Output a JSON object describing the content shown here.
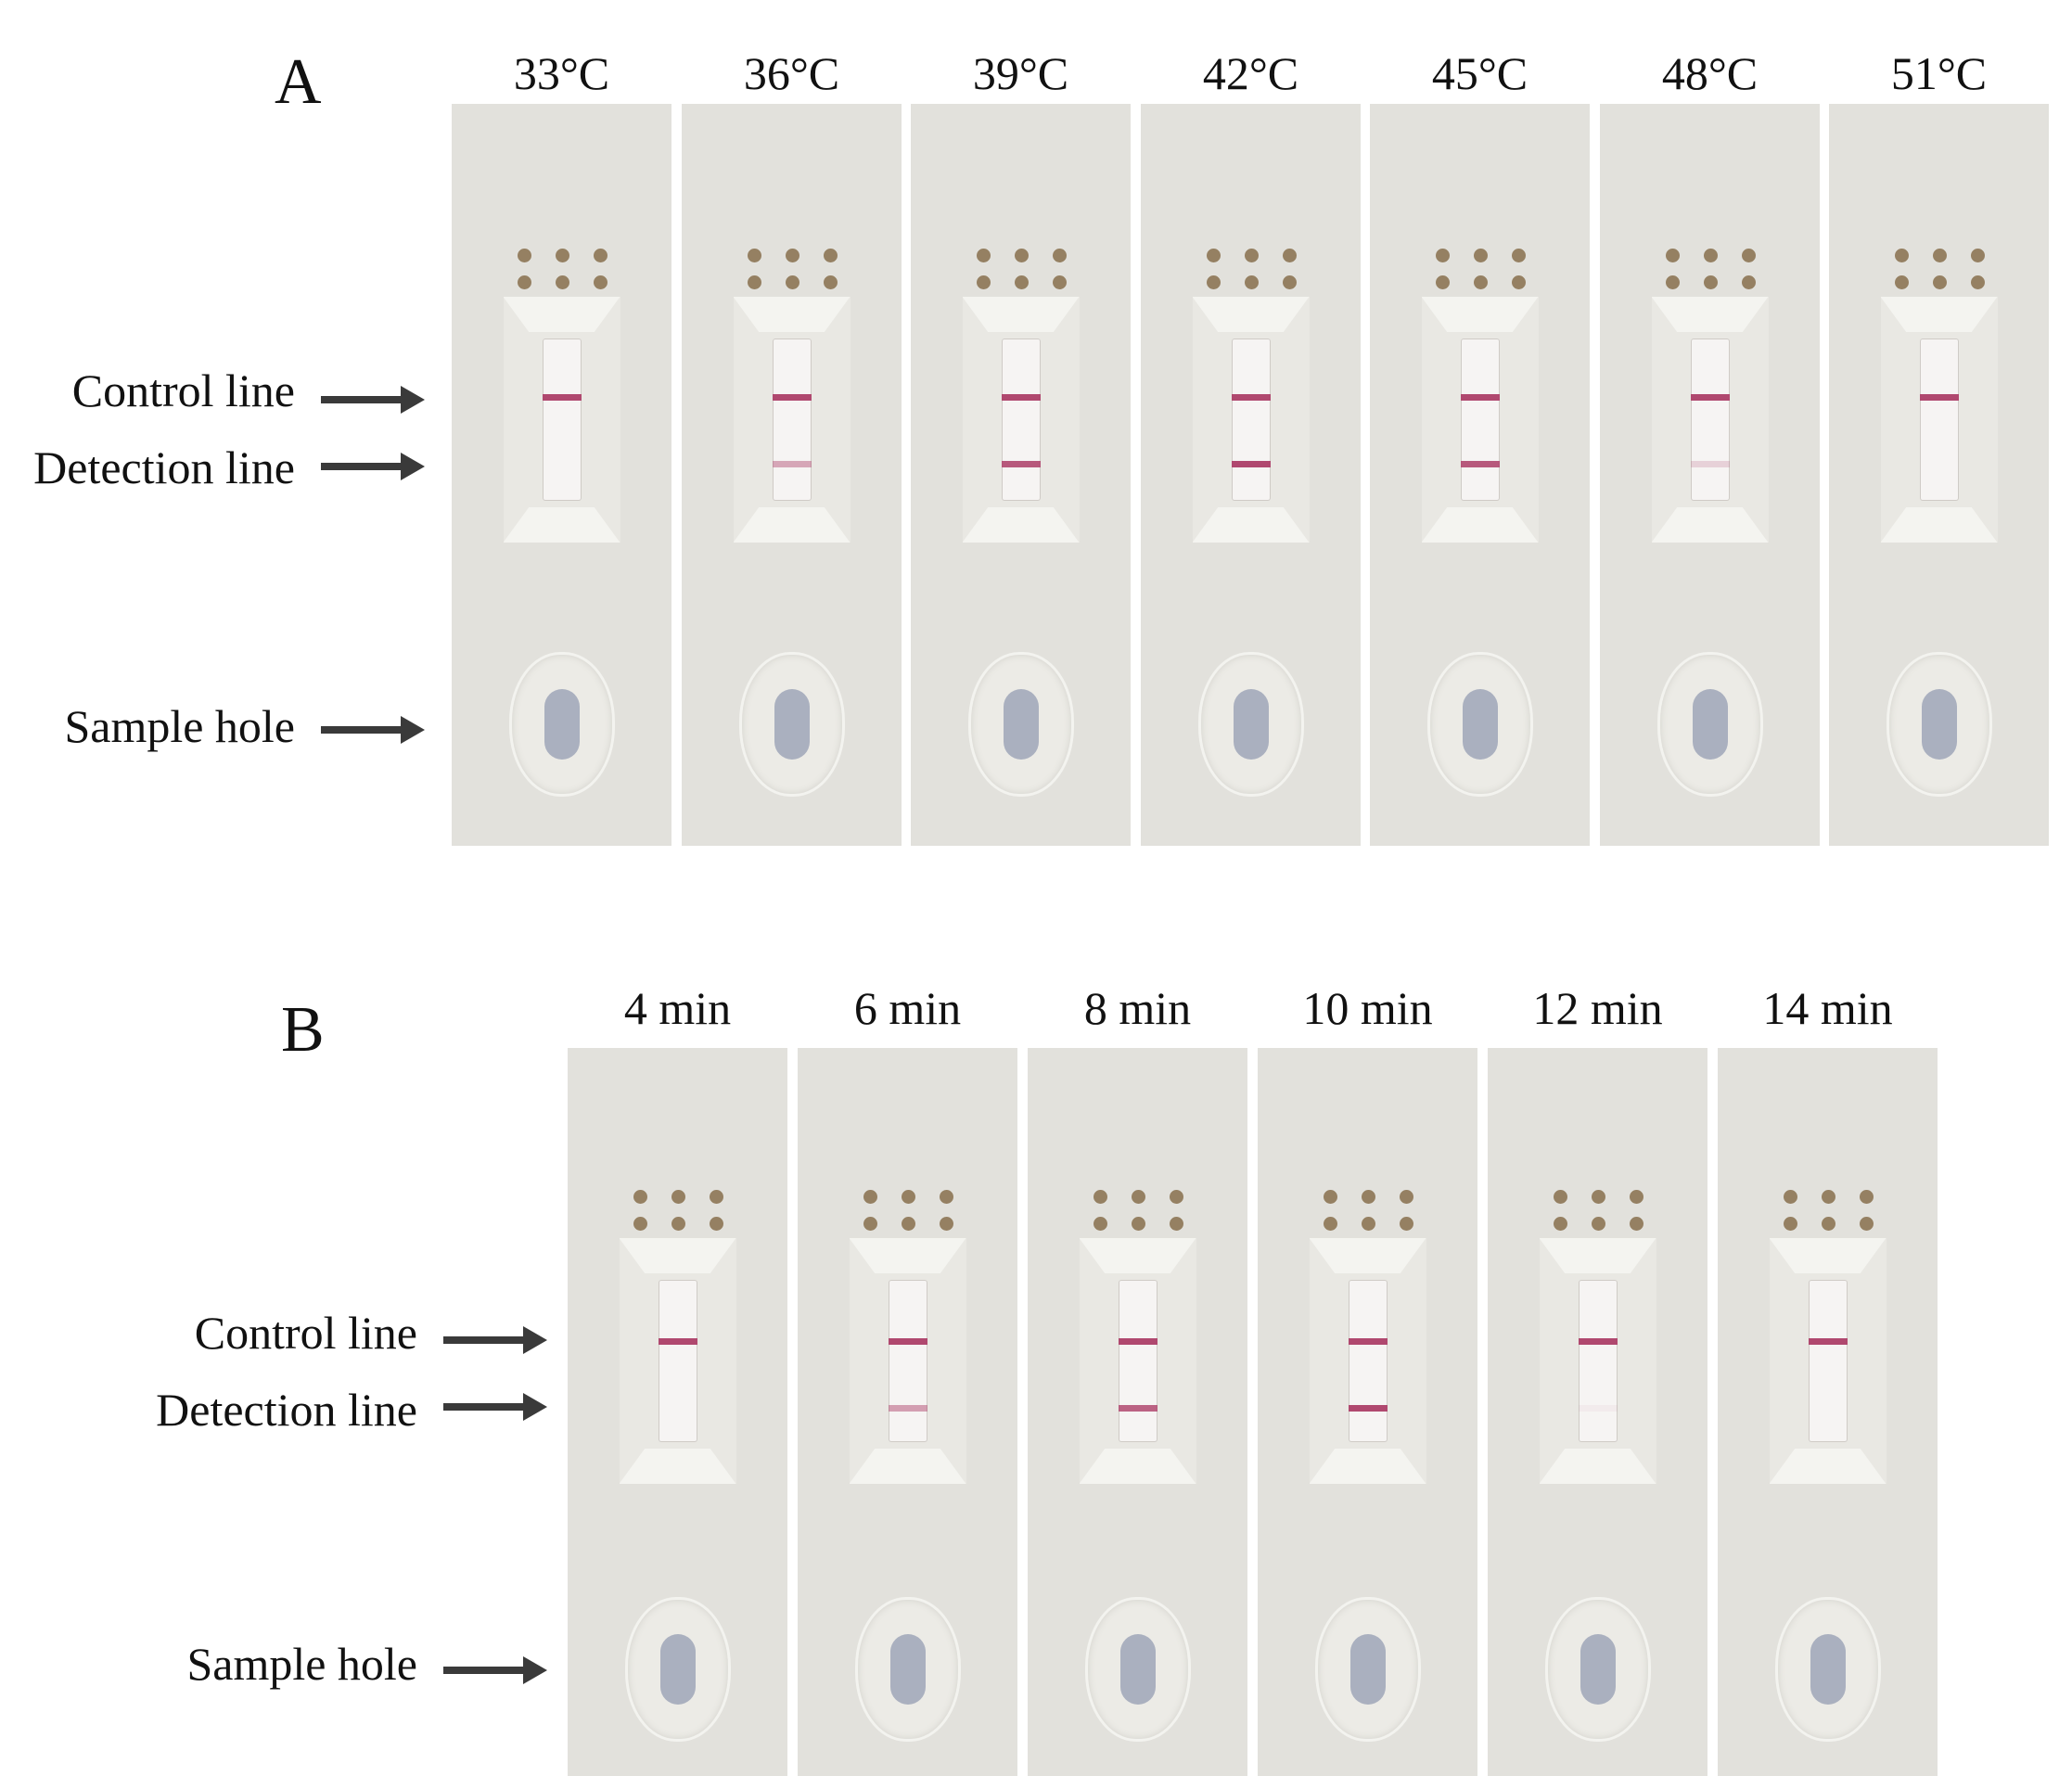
{
  "panels": [
    {
      "letter": "A",
      "row_labels": {
        "control": "Control line",
        "detection": "Detection line",
        "sample": "Sample hole"
      },
      "strips": [
        {
          "condition": "33°C",
          "control_line": true,
          "detection_line": 0.0
        },
        {
          "condition": "36°C",
          "control_line": true,
          "detection_line": 0.45
        },
        {
          "condition": "39°C",
          "control_line": true,
          "detection_line": 0.9
        },
        {
          "condition": "42°C",
          "control_line": true,
          "detection_line": 1.0
        },
        {
          "condition": "45°C",
          "control_line": true,
          "detection_line": 0.9
        },
        {
          "condition": "48°C",
          "control_line": true,
          "detection_line": 0.2
        },
        {
          "condition": "51°C",
          "control_line": true,
          "detection_line": 0.0
        }
      ]
    },
    {
      "letter": "B",
      "row_labels": {
        "control": "Control line",
        "detection": "Detection line",
        "sample": "Sample hole"
      },
      "strips": [
        {
          "condition": "4 min",
          "control_line": true,
          "detection_line": 0.0
        },
        {
          "condition": "6 min",
          "control_line": true,
          "detection_line": 0.5
        },
        {
          "condition": "8 min",
          "control_line": true,
          "detection_line": 0.85
        },
        {
          "condition": "10 min",
          "control_line": true,
          "detection_line": 1.0
        },
        {
          "condition": "12 min",
          "control_line": true,
          "detection_line": 0.05
        },
        {
          "condition": "14 min",
          "control_line": true,
          "detection_line": 0.0
        }
      ]
    }
  ],
  "colors": {
    "test_line": "#b0486f",
    "strip": "#e2e1dc",
    "window": "#f6f4f3",
    "arrow": "#3a3a3a"
  }
}
